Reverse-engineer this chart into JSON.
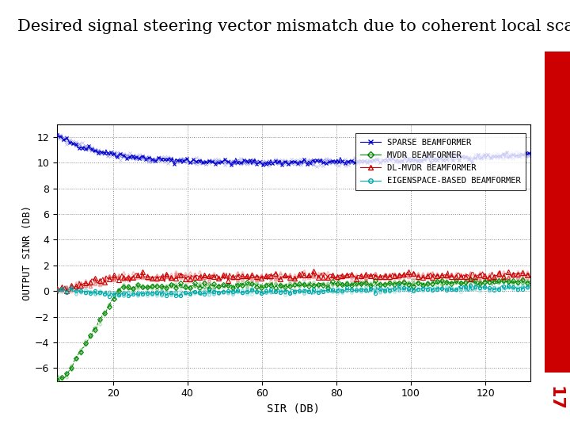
{
  "title": "Desired signal steering vector mismatch due to coherent local scattering",
  "xlabel": "SIR (DB)",
  "ylabel": "OUTPUT SINR (DB)",
  "xlim": [
    5,
    132
  ],
  "ylim": [
    -7,
    13
  ],
  "yticks": [
    -6,
    -4,
    -2,
    0,
    2,
    4,
    6,
    8,
    10,
    12
  ],
  "xticks": [
    20,
    40,
    60,
    80,
    100,
    120
  ],
  "background_color": "#ffffff",
  "title_fontsize": 15,
  "slide_number": "17",
  "legend_labels": [
    "SPARSE BEAMFORMER",
    "MVDR BEAMFORMER",
    "DL-MVDR BEAMFORMER",
    "EIGENSPACE-BASED BEAMFORMER"
  ],
  "line_colors": [
    "#0000cc",
    "#008800",
    "#cc0000",
    "#00aaaa"
  ],
  "red_bar_color": "#cc0000"
}
